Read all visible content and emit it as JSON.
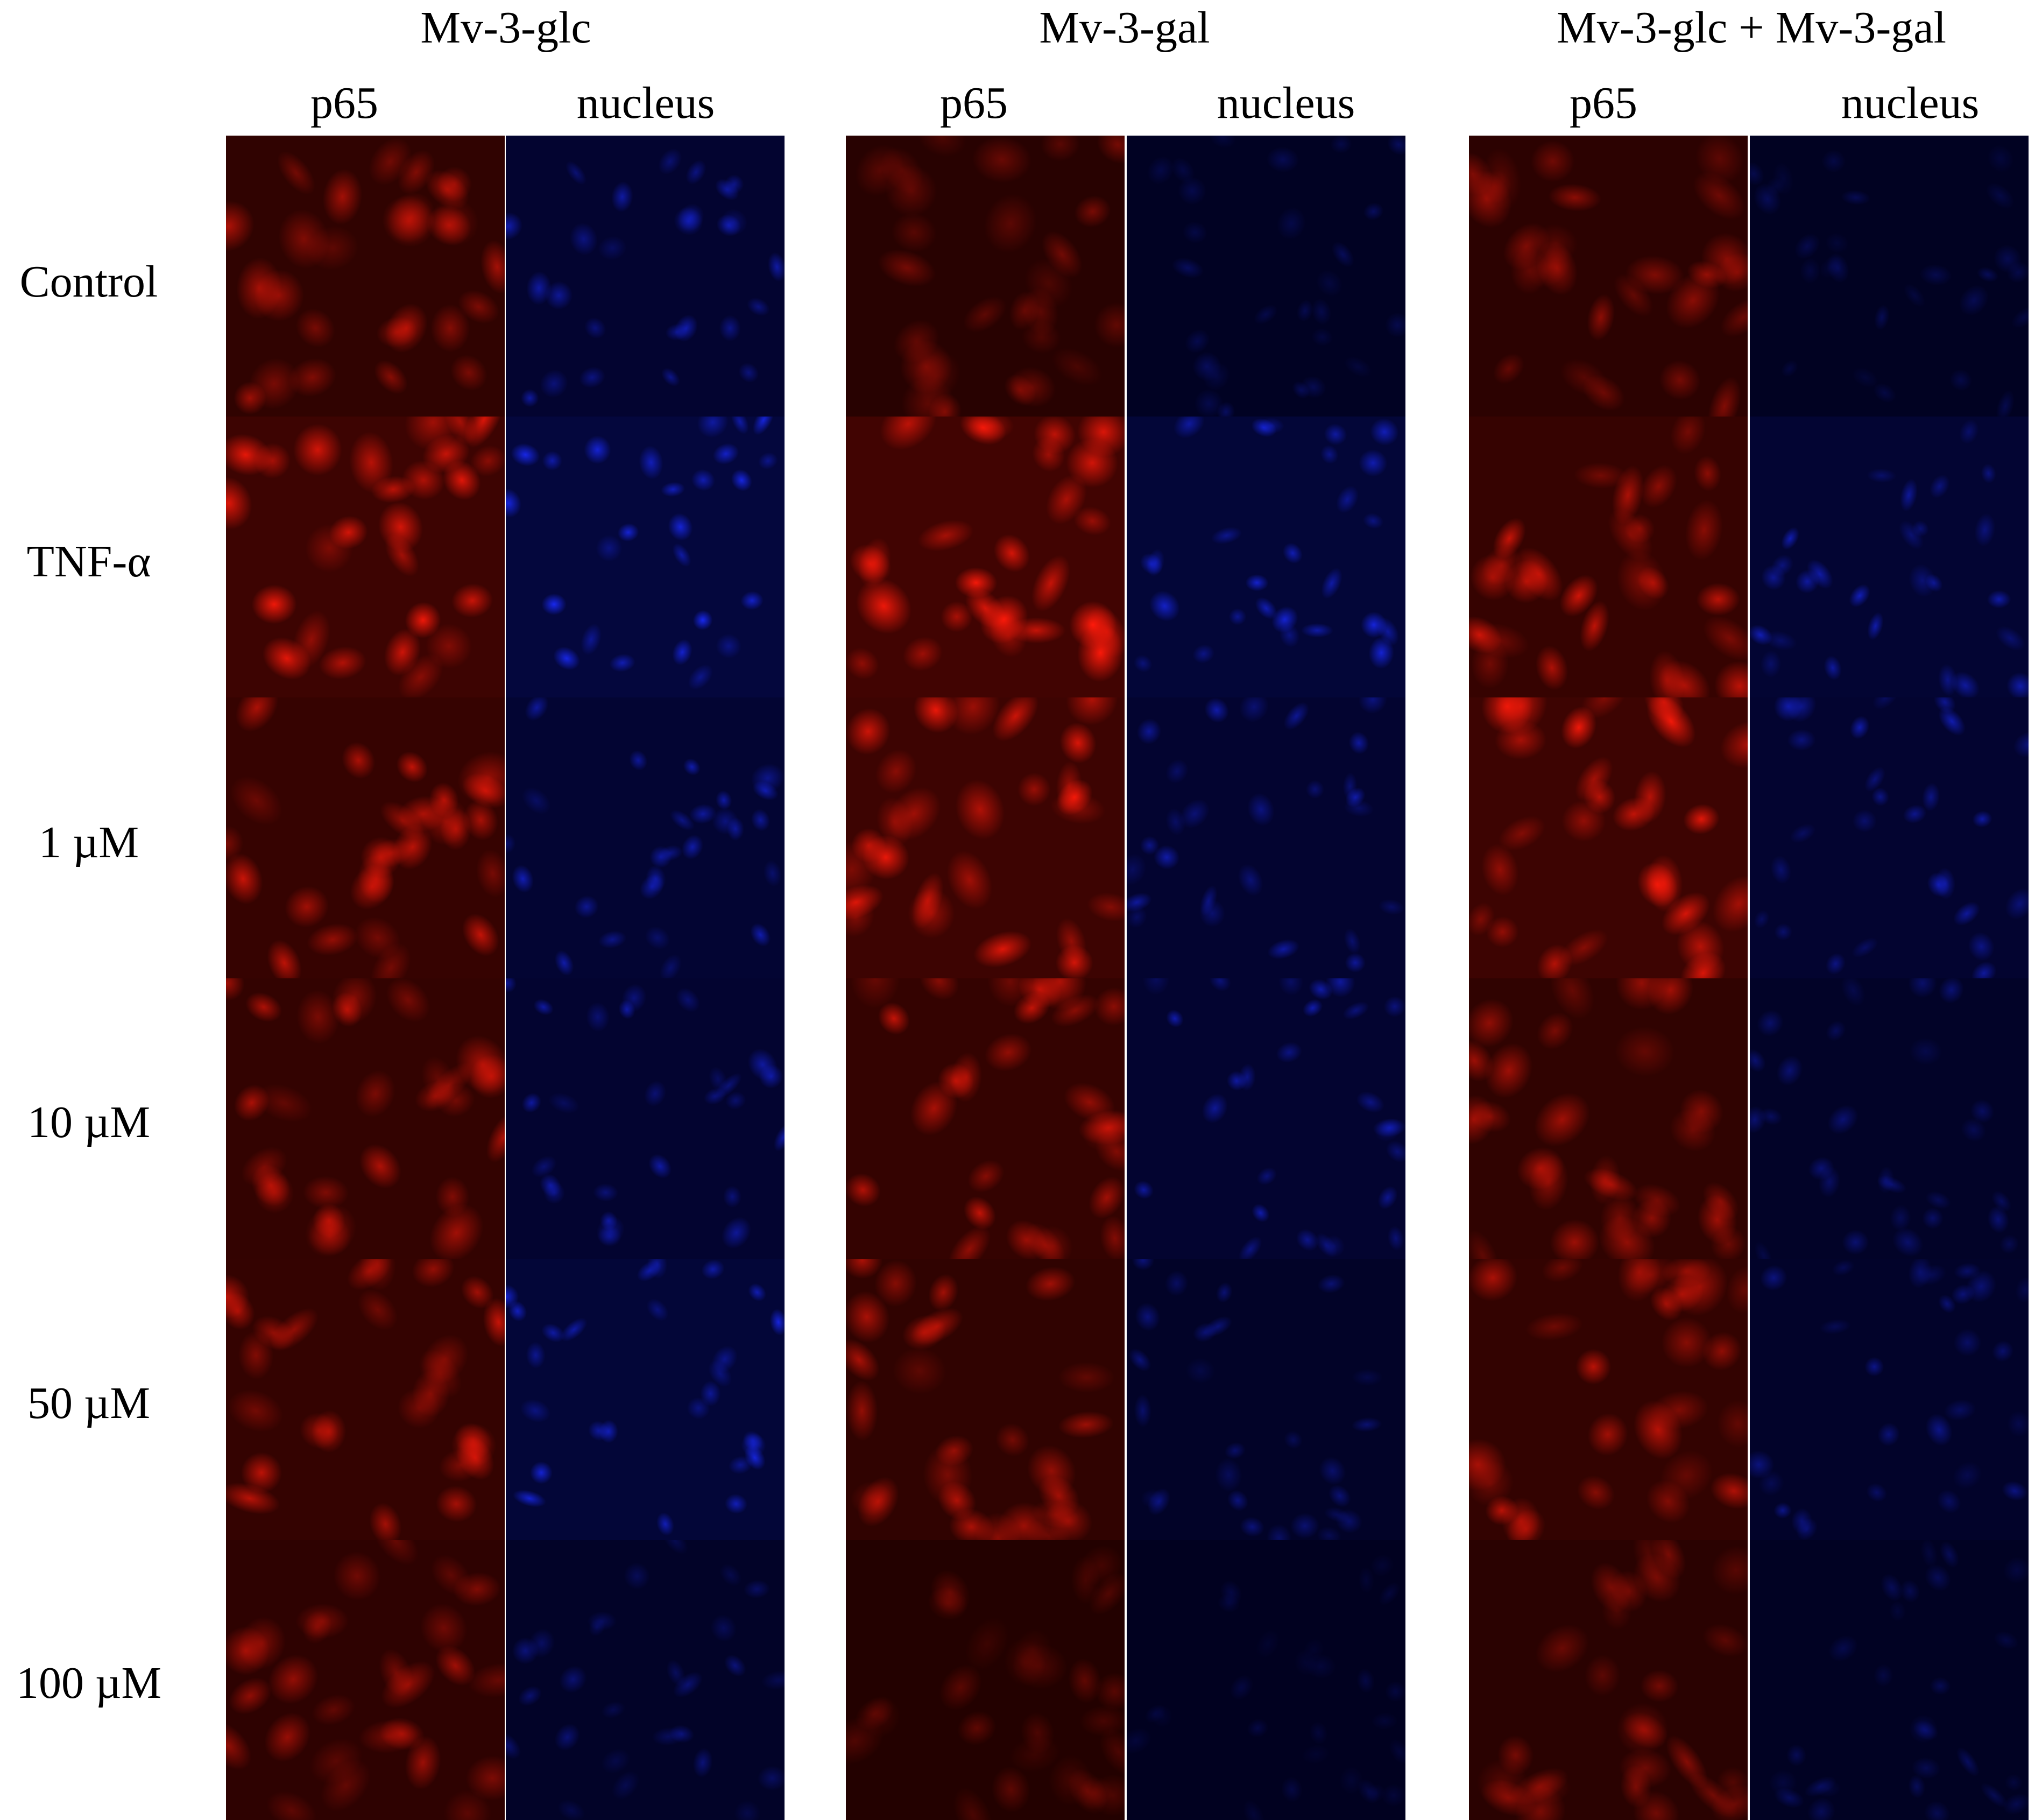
{
  "figure": {
    "groups": [
      {
        "title": "Mv-3-glc",
        "channels": [
          "p65",
          "nucleus"
        ]
      },
      {
        "title": "Mv-3-gal",
        "channels": [
          "p65",
          "nucleus"
        ]
      },
      {
        "title": "Mv-3-glc + Mv-3-gal",
        "channels": [
          "p65",
          "nucleus"
        ]
      }
    ],
    "rows": [
      "Control",
      "TNF-α",
      "1 µM",
      "10 µM",
      "50 µM",
      "100 µM"
    ],
    "colors": {
      "p65_stain": "#ff1a0a",
      "nucleus_stain": "#1a2bff",
      "background": "#ffffff",
      "text": "#000000"
    },
    "intensity": [
      [
        [
          0.55,
          0.55
        ],
        [
          0.35,
          0.25
        ],
        [
          0.45,
          0.22
        ]
      ],
      [
        [
          0.85,
          0.85
        ],
        [
          0.95,
          0.75
        ],
        [
          0.7,
          0.6
        ]
      ],
      [
        [
          0.7,
          0.6
        ],
        [
          0.85,
          0.55
        ],
        [
          0.85,
          0.55
        ]
      ],
      [
        [
          0.6,
          0.55
        ],
        [
          0.65,
          0.55
        ],
        [
          0.55,
          0.35
        ]
      ],
      [
        [
          0.65,
          0.75
        ],
        [
          0.55,
          0.35
        ],
        [
          0.6,
          0.4
        ]
      ],
      [
        [
          0.5,
          0.35
        ],
        [
          0.25,
          0.15
        ],
        [
          0.4,
          0.25
        ]
      ]
    ]
  }
}
